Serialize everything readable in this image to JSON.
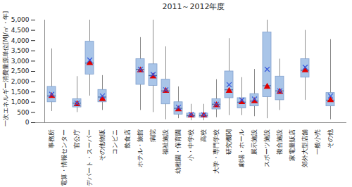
{
  "chart_data": {
    "type": "boxplot",
    "title": "2011～2012年度",
    "y_label": "一次エネルギー消費量原単位[MJ/㎡・年]",
    "categories": [
      "事務所",
      "電算・情報センター",
      "官公庁",
      "デパート・スーパー",
      "その他物販",
      "コンビニ",
      "飲食店",
      "ホテル・旅館",
      "病院",
      "福祉施設",
      "幼稚園・保育園",
      "小・中学校",
      "高校",
      "大学・専門学校",
      "研究機関",
      "劇場・ホール",
      "展示施設",
      "スポーツ施設",
      "複合施設",
      "家電量販店",
      "郊外大型店舗",
      "一般小売",
      "その他"
    ],
    "whisker_low": [
      550,
      null,
      500,
      1300,
      600,
      null,
      null,
      600,
      500,
      150,
      200,
      100,
      100,
      250,
      350,
      350,
      300,
      200,
      600,
      null,
      1100,
      null,
      150
    ],
    "q1": [
      1000,
      null,
      750,
      2350,
      1000,
      null,
      null,
      1850,
      1800,
      900,
      400,
      250,
      250,
      650,
      1200,
      700,
      800,
      1250,
      1100,
      null,
      2200,
      null,
      800
    ],
    "median": [
      1300,
      null,
      950,
      2900,
      1250,
      null,
      null,
      2600,
      2300,
      1550,
      700,
      350,
      350,
      900,
      1600,
      1000,
      1050,
      1800,
      1550,
      null,
      2550,
      null,
      1100
    ],
    "q3": [
      1750,
      null,
      1150,
      3950,
      1600,
      null,
      null,
      3100,
      2850,
      2100,
      1000,
      450,
      450,
      1150,
      2500,
      1200,
      1400,
      4400,
      2250,
      null,
      3100,
      null,
      1450
    ],
    "whisker_high": [
      3600,
      null,
      2250,
      5000,
      2300,
      null,
      null,
      4150,
      5000,
      3700,
      1750,
      900,
      900,
      2100,
      4100,
      2200,
      2600,
      5000,
      3100,
      null,
      4500,
      null,
      4050
    ],
    "triangle": [
      1300,
      null,
      900,
      2900,
      1150,
      null,
      null,
      2550,
      2250,
      1550,
      650,
      350,
      350,
      850,
      1550,
      1000,
      1050,
      1750,
      1500,
      null,
      2550,
      null,
      1100
    ],
    "cross": [
      1380,
      null,
      950,
      3050,
      1300,
      null,
      null,
      2600,
      2350,
      1600,
      750,
      400,
      380,
      900,
      1850,
      1100,
      1150,
      2600,
      1550,
      null,
      2700,
      null,
      1300
    ],
    "color": "#a9c5e8",
    "ylim": [
      0,
      5000
    ],
    "yticks": [
      0,
      500,
      {
        "value": 1000,
        "label": "1,000"
      },
      {
        "value": 1500,
        "label": "1,500"
      },
      {
        "value": 2000,
        "label": "2,000"
      },
      {
        "value": 2500,
        "label": "2,500"
      },
      {
        "value": 3000,
        "label": "3,000"
      },
      {
        "value": 3500,
        "label": "3,500"
      },
      {
        "value": 4000,
        "label": "4,000"
      },
      {
        "value": 4500,
        "label": "4,500"
      },
      {
        "value": 5000,
        "label": "5,000"
      }
    ],
    "grid": false
  }
}
